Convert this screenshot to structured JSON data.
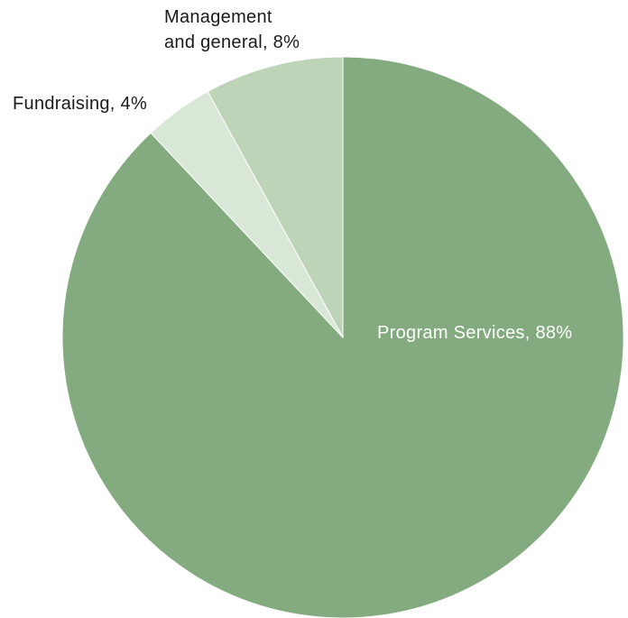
{
  "chart_data": {
    "type": "pie",
    "start": "12 o'clock",
    "direction": "clockwise",
    "slices": [
      {
        "label_lines": [
          "Program Services, 88%"
        ],
        "value": 88,
        "color": "#84ab7f",
        "label_color": "#ffffff",
        "label_position": "inside"
      },
      {
        "label_lines": [
          "Fundraising, 4%"
        ],
        "value": 4,
        "color": "#d9e7d6",
        "label_color": "#1a1a1a",
        "label_position": "outside"
      },
      {
        "label_lines": [
          "Management",
          "and general, 8%"
        ],
        "value": 8,
        "color": "#bdd4b8",
        "label_color": "#1a1a1a",
        "label_position": "outside"
      }
    ],
    "legend": "none"
  }
}
